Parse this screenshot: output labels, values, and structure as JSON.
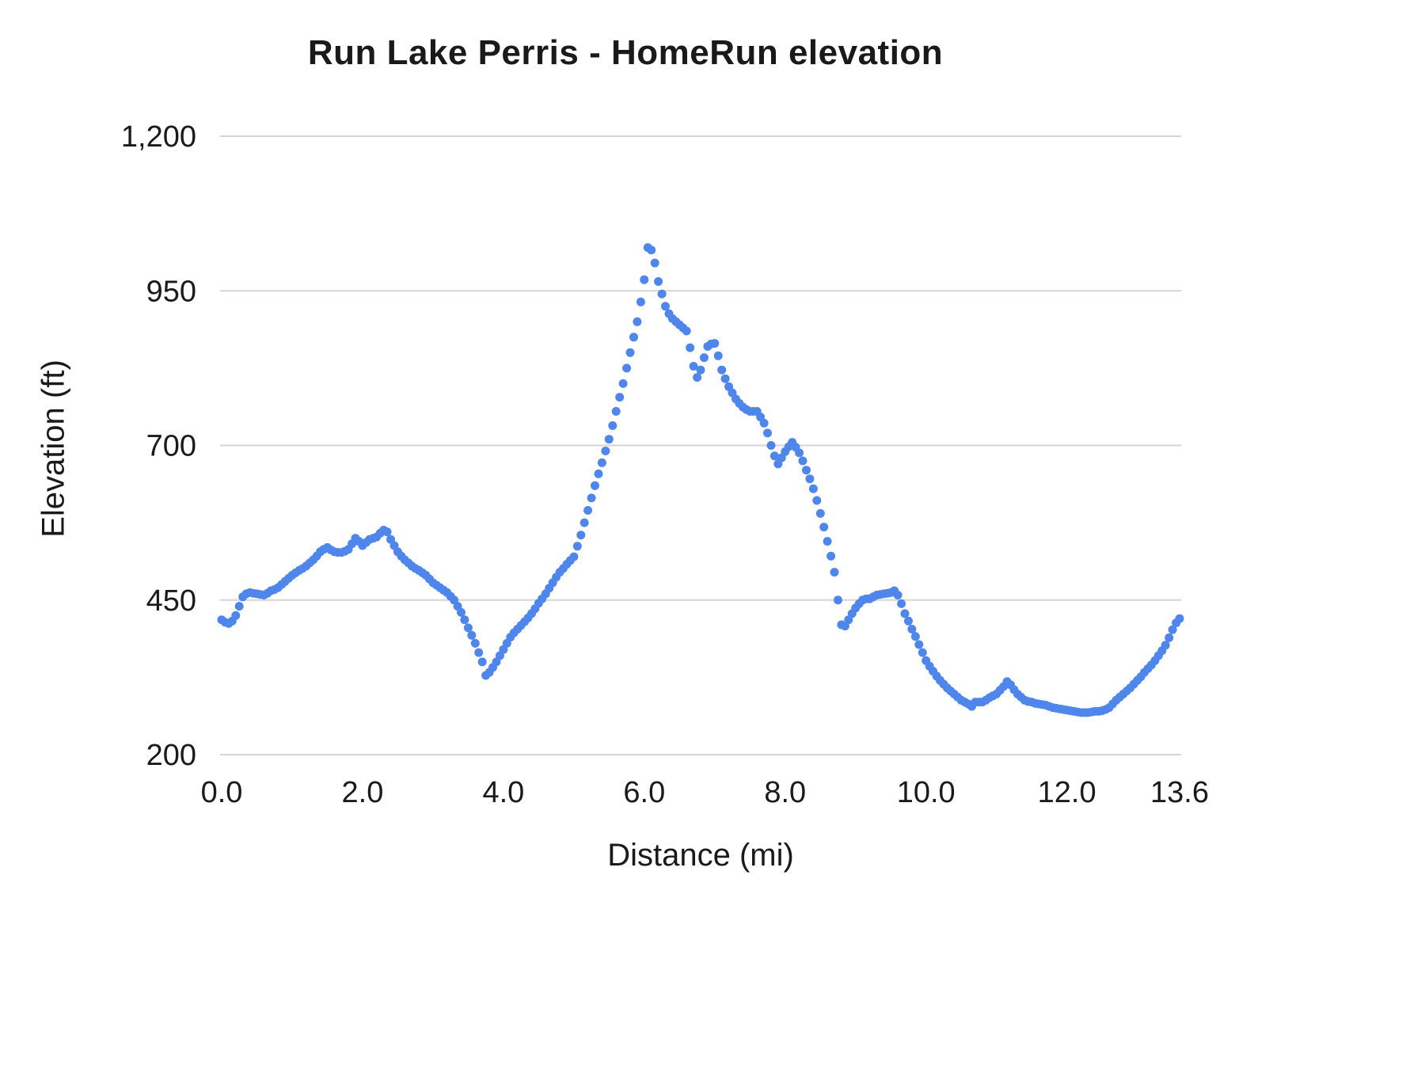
{
  "chart_data": {
    "type": "scatter",
    "title": "Run Lake Perris - HomeRun elevation",
    "xlabel": "Distance (mi)",
    "ylabel": "Elevation (ft)",
    "xlim": [
      0,
      13.6
    ],
    "ylim": [
      200,
      1200
    ],
    "x_ticks": [
      0.0,
      2.0,
      4.0,
      6.0,
      8.0,
      10.0,
      12.0,
      13.6
    ],
    "x_tick_labels": [
      "0.0",
      "2.0",
      "4.0",
      "6.0",
      "8.0",
      "10.0",
      "12.0",
      "13.6"
    ],
    "y_ticks": [
      200,
      450,
      700,
      950,
      1200
    ],
    "y_tick_labels": [
      "200",
      "450",
      "700",
      "950",
      "1,200"
    ],
    "grid": "horizontal-only",
    "legend": "none",
    "marker_color": "#4f86ec",
    "gridline_color": "#d5d5d5",
    "x_start": 0,
    "x_step": 0.05,
    "elevations": [
      418,
      414,
      412,
      416,
      425,
      440,
      455,
      460,
      462,
      461,
      460,
      459,
      458,
      461,
      465,
      467,
      470,
      475,
      480,
      485,
      490,
      494,
      498,
      501,
      505,
      510,
      515,
      521,
      528,
      532,
      535,
      531,
      528,
      527,
      527,
      529,
      532,
      541,
      550,
      545,
      538,
      543,
      548,
      550,
      552,
      558,
      563,
      560,
      548,
      538,
      528,
      521,
      515,
      510,
      505,
      501,
      498,
      494,
      490,
      484,
      478,
      474,
      470,
      466,
      462,
      456,
      450,
      440,
      430,
      418,
      405,
      393,
      380,
      365,
      350,
      328,
      333,
      341,
      350,
      360,
      370,
      380,
      390,
      397,
      403,
      409,
      415,
      421,
      428,
      436,
      445,
      452,
      460,
      469,
      478,
      487,
      495,
      501,
      508,
      514,
      520,
      537,
      555,
      575,
      595,
      615,
      635,
      654,
      672,
      691,
      710,
      732,
      755,
      778,
      800,
      825,
      850,
      875,
      900,
      932,
      968,
      1020,
      1016,
      995,
      965,
      945,
      925,
      913,
      905,
      900,
      895,
      890,
      885,
      858,
      828,
      810,
      822,
      842,
      860,
      864,
      865,
      845,
      822,
      808,
      795,
      785,
      775,
      768,
      762,
      758,
      755,
      755,
      755,
      746,
      736,
      720,
      700,
      683,
      670,
      680,
      690,
      698,
      705,
      697,
      688,
      675,
      660,
      646,
      630,
      611,
      590,
      568,
      545,
      521,
      495,
      450,
      410,
      408,
      418,
      428,
      437,
      444,
      450,
      452,
      452,
      455,
      458,
      459,
      460,
      461,
      462,
      465,
      458,
      444,
      428,
      416,
      403,
      391,
      378,
      365,
      352,
      343,
      335,
      327,
      320,
      314,
      308,
      303,
      298,
      293,
      288,
      285,
      282,
      278,
      285,
      285,
      285,
      288,
      292,
      295,
      298,
      304,
      310,
      318,
      313,
      305,
      298,
      293,
      288,
      286,
      285,
      283,
      282,
      281,
      280,
      278,
      276,
      275,
      274,
      273,
      272,
      271,
      270,
      269,
      268,
      268,
      268,
      269,
      270,
      270,
      271,
      273,
      276,
      282,
      288,
      293,
      298,
      303,
      308,
      314,
      320,
      326,
      333,
      339,
      345,
      352,
      360,
      368,
      377,
      389,
      402,
      413,
      420
    ]
  }
}
